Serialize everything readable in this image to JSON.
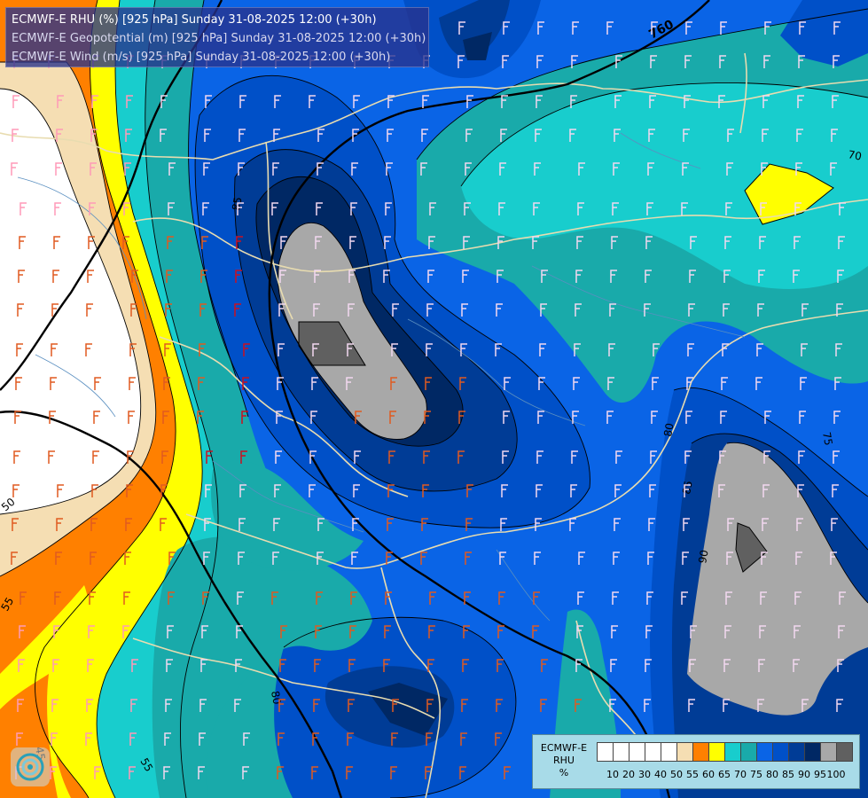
{
  "header": {
    "line1": "ECMWF-E RHU (%) [925 hPa] Sunday 31-08-2025 12:00 (+30h)",
    "line2": "ECMWF-E Geopotential (m) [925 hPa] Sunday 31-08-2025 12:00 (+30h)",
    "line3": "ECMWF-E Wind (m/s) [925 hPa] Sunday 31-08-2025 12:00 (+30h)"
  },
  "legend": {
    "title_1": "ECMWF-E",
    "title_2": "RHU",
    "title_3": "%",
    "ticks": [
      "10",
      "20",
      "30",
      "40",
      "50",
      "55",
      "60",
      "65",
      "70",
      "75",
      "80",
      "85",
      "90",
      "95",
      "100"
    ],
    "colors": [
      "#ffffff",
      "#ffffff",
      "#ffffff",
      "#ffffff",
      "#ffffff",
      "#f5deb3",
      "#ff8000",
      "#ffff00",
      "#18cdcd",
      "#19aaaa",
      "#0a64e6",
      "#0050c8",
      "#003c96",
      "#002864",
      "#a8a8a8",
      "#606060"
    ]
  },
  "map_labels": {
    "geopotential_760": "760",
    "rhu_50": "50",
    "rhu_55_left": "55",
    "rhu_55_bottom": "55",
    "rhu_45": "45",
    "rhu_85_top": "85",
    "rhu_85_right": "85",
    "rhu_80_bottom": "80",
    "rhu_80_right": "80",
    "rhu_90": "90",
    "rhu_75": "75",
    "rhu_70": "70"
  },
  "colors": {
    "geopotential_contour": "#000000",
    "border_line": "#e8dcb0",
    "river_line": "#5a8fc0"
  }
}
